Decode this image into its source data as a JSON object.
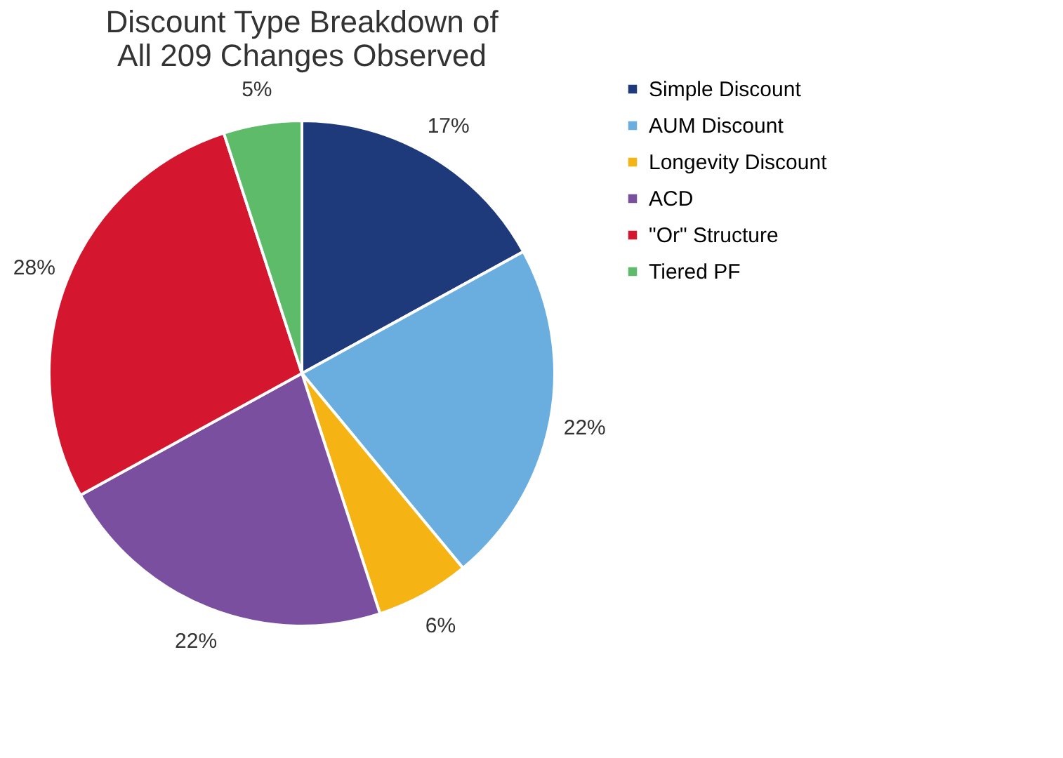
{
  "chart_data": {
    "type": "pie",
    "title": "Discount Type Breakdown of\nAll 209 Changes Observed",
    "categories": [
      "Simple Discount",
      "AUM Discount",
      "Longevity Discount",
      "ACD",
      "\"Or\" Structure",
      "Tiered PF"
    ],
    "values": [
      17,
      22,
      6,
      22,
      28,
      5
    ],
    "value_labels": [
      "17%",
      "22%",
      "6%",
      "22%",
      "28%",
      "5%"
    ],
    "colors": [
      "#1f3a7a",
      "#6aaee0",
      "#f5b414",
      "#7b4fa0",
      "#d4172f",
      "#5dbb6a"
    ],
    "legend": "right"
  }
}
